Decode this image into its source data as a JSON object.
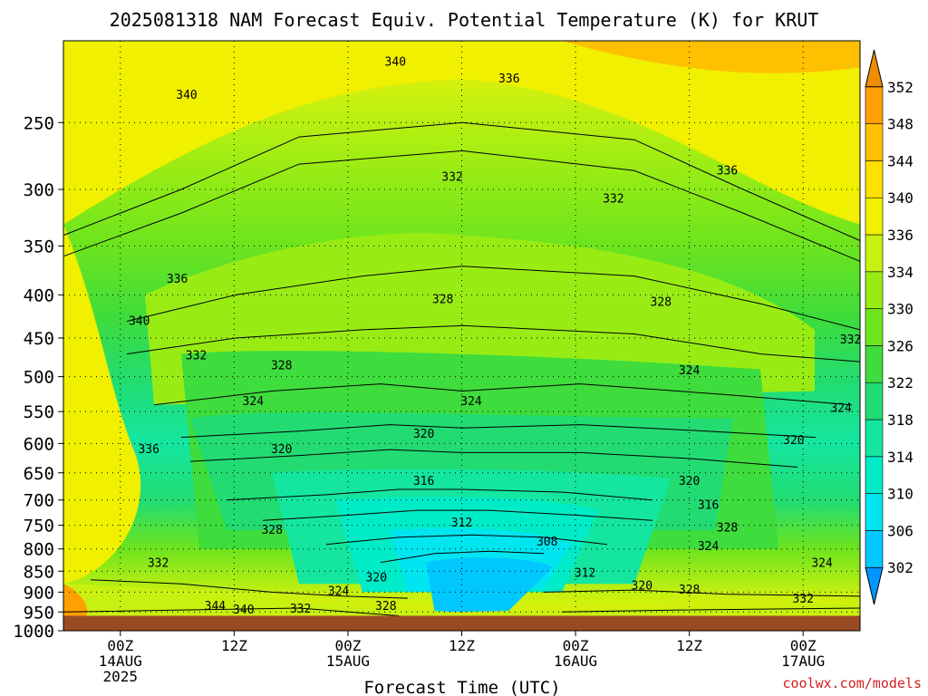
{
  "chart_data": {
    "type": "heatmap",
    "title": "2025081318 NAM Forecast Equiv. Potential Temperature (K) for KRUT",
    "xlabel": "Forecast Time (UTC)",
    "ylabel": "",
    "credit": "coolwx.com/models",
    "y_scale": "log",
    "y_inverted": true,
    "ylim": [
      1000,
      200
    ],
    "y_ticks": [
      250,
      300,
      350,
      400,
      450,
      500,
      550,
      600,
      650,
      700,
      750,
      800,
      850,
      900,
      950,
      1000
    ],
    "x_ticks": [
      {
        "hour": 6,
        "line1": "00Z",
        "line2": "14AUG",
        "line3": "2025"
      },
      {
        "hour": 18,
        "line1": "12Z",
        "line2": "",
        "line3": ""
      },
      {
        "hour": 30,
        "line1": "00Z",
        "line2": "15AUG",
        "line3": ""
      },
      {
        "hour": 42,
        "line1": "12Z",
        "line2": "",
        "line3": ""
      },
      {
        "hour": 54,
        "line1": "00Z",
        "line2": "16AUG",
        "line3": ""
      },
      {
        "hour": 66,
        "line1": "12Z",
        "line2": "",
        "line3": ""
      },
      {
        "hour": 78,
        "line1": "00Z",
        "line2": "17AUG",
        "line3": ""
      }
    ],
    "xlim_hours": [
      0,
      84
    ],
    "surface_pressure": 960,
    "surface_color": "#9a4a22",
    "grid": true,
    "colorbar": {
      "levels": [
        302,
        306,
        310,
        314,
        318,
        322,
        326,
        330,
        334,
        336,
        340,
        344,
        348,
        352
      ],
      "colors": [
        "#0095ff",
        "#00c8ff",
        "#00e6f0",
        "#00ecc8",
        "#14e6a0",
        "#22dc72",
        "#3edc3c",
        "#6ce41e",
        "#98ec14",
        "#c8f010",
        "#f0f000",
        "#ffe000",
        "#ffc000",
        "#ffa000",
        "#f08c00"
      ]
    },
    "contour_labels": [
      {
        "text": "340",
        "hour": 35,
        "p": 212
      },
      {
        "text": "336",
        "hour": 47,
        "p": 222
      },
      {
        "text": "340",
        "hour": 13,
        "p": 232
      },
      {
        "text": "336",
        "hour": 70,
        "p": 285
      },
      {
        "text": "332",
        "hour": 41,
        "p": 290
      },
      {
        "text": "332",
        "hour": 58,
        "p": 308
      },
      {
        "text": "336",
        "hour": 12,
        "p": 383
      },
      {
        "text": "340",
        "hour": 8,
        "p": 430
      },
      {
        "text": "328",
        "hour": 40,
        "p": 405
      },
      {
        "text": "328",
        "hour": 63,
        "p": 408
      },
      {
        "text": "332",
        "hour": 14,
        "p": 472
      },
      {
        "text": "332",
        "hour": 83,
        "p": 452
      },
      {
        "text": "328",
        "hour": 23,
        "p": 485
      },
      {
        "text": "324",
        "hour": 66,
        "p": 492
      },
      {
        "text": "324",
        "hour": 20,
        "p": 535
      },
      {
        "text": "324",
        "hour": 43,
        "p": 535
      },
      {
        "text": "324",
        "hour": 82,
        "p": 545
      },
      {
        "text": "320",
        "hour": 38,
        "p": 585
      },
      {
        "text": "320",
        "hour": 23,
        "p": 610
      },
      {
        "text": "320",
        "hour": 77,
        "p": 595
      },
      {
        "text": "336",
        "hour": 9,
        "p": 610
      },
      {
        "text": "316",
        "hour": 38,
        "p": 665
      },
      {
        "text": "320",
        "hour": 66,
        "p": 665
      },
      {
        "text": "316",
        "hour": 68,
        "p": 710
      },
      {
        "text": "312",
        "hour": 42,
        "p": 745
      },
      {
        "text": "328",
        "hour": 22,
        "p": 760
      },
      {
        "text": "328",
        "hour": 70,
        "p": 755
      },
      {
        "text": "308",
        "hour": 51,
        "p": 785
      },
      {
        "text": "324",
        "hour": 68,
        "p": 795
      },
      {
        "text": "332",
        "hour": 10,
        "p": 832
      },
      {
        "text": "312",
        "hour": 55,
        "p": 855
      },
      {
        "text": "320",
        "hour": 33,
        "p": 865
      },
      {
        "text": "324",
        "hour": 80,
        "p": 832
      },
      {
        "text": "320",
        "hour": 61,
        "p": 885
      },
      {
        "text": "328",
        "hour": 66,
        "p": 895
      },
      {
        "text": "324",
        "hour": 29,
        "p": 898
      },
      {
        "text": "332",
        "hour": 78,
        "p": 917
      },
      {
        "text": "328",
        "hour": 34,
        "p": 935
      },
      {
        "text": "344",
        "hour": 16,
        "p": 935
      },
      {
        "text": "340",
        "hour": 19,
        "p": 945
      },
      {
        "text": "332",
        "hour": 25,
        "p": 942
      }
    ]
  }
}
